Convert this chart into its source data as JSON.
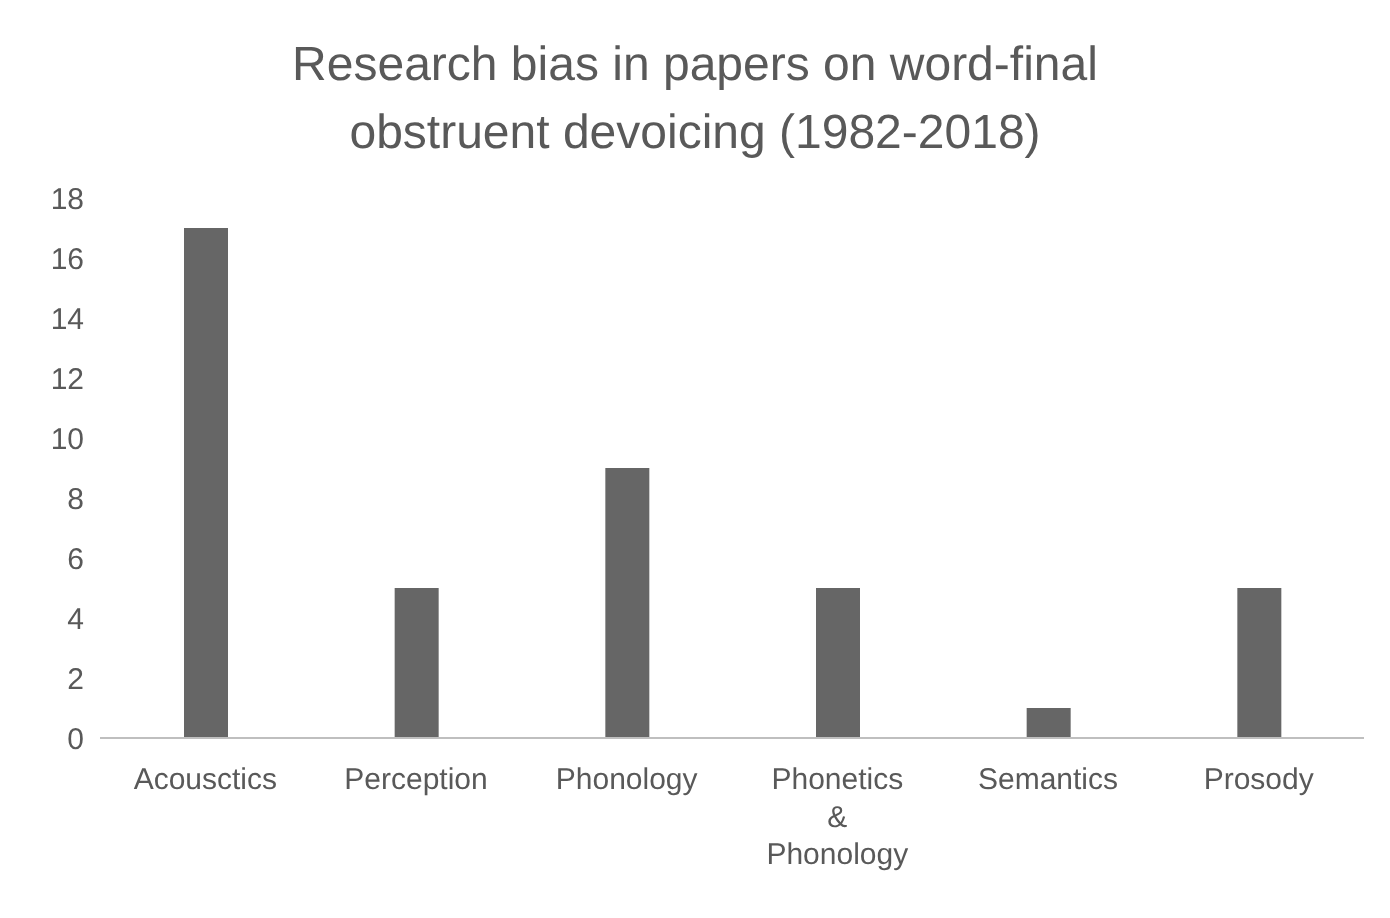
{
  "chart_data": {
    "type": "bar",
    "title": "Research bias in papers on word-final obstruent devoicing (1982-2018)",
    "categories": [
      "Acousctics",
      "Perception",
      "Phonology",
      "Phonetics & Phonology",
      "Semantics",
      "Prosody"
    ],
    "values": [
      17,
      5,
      9,
      5,
      1,
      5
    ],
    "color": "#666666",
    "ylim": [
      0,
      18
    ],
    "yticks": [
      0,
      2,
      4,
      6,
      8,
      10,
      12,
      14,
      16,
      18
    ],
    "grid": false,
    "legend": false
  }
}
